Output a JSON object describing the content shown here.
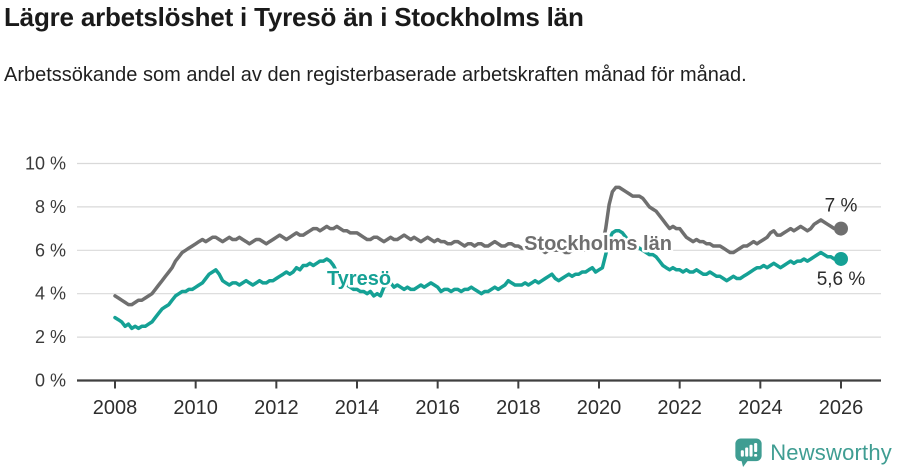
{
  "header": {
    "title": "Lägre arbetslöshet i Tyresö än i Stockholms län",
    "subtitle": "Arbetssökande som andel av den registerbaserade arbetskraften månad för månad."
  },
  "chart_data": {
    "type": "line",
    "title": "Lägre arbetslöshet i Tyresö än i Stockholms län",
    "subtitle": "Arbetssökande som andel av den registerbaserade arbetskraften månad för månad.",
    "unit": "%",
    "x_start_year": 2008,
    "x_end_year": 2026,
    "points_per_year": 12,
    "x_tick_years": [
      2008,
      2010,
      2012,
      2014,
      2016,
      2018,
      2020,
      2022,
      2024,
      2026
    ],
    "y_ticks": [
      0,
      2,
      4,
      6,
      8,
      10
    ],
    "y_tick_labels": [
      "0 %",
      "2 %",
      "4 %",
      "6 %",
      "8 %",
      "10 %"
    ],
    "ylim": [
      0,
      10
    ],
    "grid": true,
    "legend_position": "inline-labels",
    "series": [
      {
        "name": "Stockholms län",
        "color": "#6f6f6f",
        "end_label": "7 %",
        "end_value": 7.0,
        "values": [
          3.9,
          3.8,
          3.7,
          3.6,
          3.5,
          3.5,
          3.6,
          3.7,
          3.7,
          3.8,
          3.9,
          4.0,
          4.2,
          4.4,
          4.6,
          4.8,
          5.0,
          5.2,
          5.5,
          5.7,
          5.9,
          6.0,
          6.1,
          6.2,
          6.3,
          6.4,
          6.5,
          6.4,
          6.5,
          6.6,
          6.6,
          6.5,
          6.4,
          6.5,
          6.6,
          6.5,
          6.5,
          6.6,
          6.5,
          6.4,
          6.3,
          6.4,
          6.5,
          6.5,
          6.4,
          6.3,
          6.4,
          6.5,
          6.6,
          6.7,
          6.6,
          6.5,
          6.6,
          6.7,
          6.8,
          6.7,
          6.7,
          6.8,
          6.9,
          7.0,
          7.0,
          6.9,
          7.0,
          7.1,
          7.0,
          7.0,
          7.1,
          7.0,
          6.9,
          6.9,
          6.8,
          6.8,
          6.8,
          6.7,
          6.6,
          6.5,
          6.5,
          6.6,
          6.6,
          6.5,
          6.4,
          6.5,
          6.6,
          6.5,
          6.5,
          6.6,
          6.7,
          6.6,
          6.5,
          6.6,
          6.5,
          6.4,
          6.5,
          6.6,
          6.5,
          6.4,
          6.5,
          6.4,
          6.4,
          6.3,
          6.3,
          6.4,
          6.4,
          6.3,
          6.2,
          6.3,
          6.3,
          6.2,
          6.3,
          6.3,
          6.2,
          6.2,
          6.3,
          6.4,
          6.3,
          6.2,
          6.2,
          6.3,
          6.3,
          6.2,
          6.2,
          6.1,
          6.1,
          6.0,
          6.0,
          6.1,
          6.1,
          6.0,
          5.9,
          6.0,
          6.0,
          6.0,
          6.0,
          6.0,
          5.9,
          5.9,
          6.0,
          6.1,
          6.1,
          6.0,
          6.0,
          6.0,
          6.1,
          6.1,
          6.2,
          6.3,
          7.0,
          8.1,
          8.7,
          8.9,
          8.9,
          8.8,
          8.7,
          8.6,
          8.5,
          8.5,
          8.5,
          8.4,
          8.2,
          8.0,
          7.9,
          7.8,
          7.6,
          7.4,
          7.2,
          7.0,
          7.1,
          7.0,
          7.0,
          6.8,
          6.6,
          6.5,
          6.4,
          6.5,
          6.4,
          6.4,
          6.3,
          6.3,
          6.2,
          6.2,
          6.2,
          6.1,
          6.0,
          5.9,
          5.9,
          6.0,
          6.1,
          6.2,
          6.2,
          6.3,
          6.4,
          6.3,
          6.4,
          6.5,
          6.6,
          6.8,
          6.9,
          6.7,
          6.7,
          6.8,
          6.9,
          7.0,
          6.9,
          7.0,
          7.1,
          7.0,
          6.9,
          7.0,
          7.2,
          7.3,
          7.4,
          7.3,
          7.2,
          7.1,
          7.0,
          7.0,
          7.0
        ]
      },
      {
        "name": "Tyresö",
        "color": "#15a195",
        "end_label": "5,6 %",
        "end_value": 5.6,
        "values": [
          2.9,
          2.8,
          2.7,
          2.5,
          2.6,
          2.4,
          2.5,
          2.4,
          2.5,
          2.5,
          2.6,
          2.7,
          2.9,
          3.1,
          3.3,
          3.4,
          3.5,
          3.7,
          3.9,
          4.0,
          4.1,
          4.1,
          4.2,
          4.2,
          4.3,
          4.4,
          4.5,
          4.7,
          4.9,
          5.0,
          5.1,
          4.9,
          4.6,
          4.5,
          4.4,
          4.5,
          4.5,
          4.4,
          4.5,
          4.6,
          4.5,
          4.4,
          4.5,
          4.6,
          4.5,
          4.5,
          4.6,
          4.6,
          4.7,
          4.8,
          4.9,
          5.0,
          4.9,
          5.0,
          5.2,
          5.1,
          5.3,
          5.3,
          5.4,
          5.3,
          5.4,
          5.5,
          5.5,
          5.6,
          5.5,
          5.3,
          5.0,
          4.8,
          4.6,
          4.4,
          4.3,
          4.2,
          4.2,
          4.1,
          4.1,
          4.0,
          4.1,
          3.9,
          4.0,
          3.9,
          4.3,
          4.4,
          4.5,
          4.3,
          4.4,
          4.3,
          4.2,
          4.3,
          4.2,
          4.2,
          4.3,
          4.4,
          4.3,
          4.4,
          4.5,
          4.4,
          4.3,
          4.1,
          4.2,
          4.2,
          4.1,
          4.2,
          4.2,
          4.1,
          4.2,
          4.2,
          4.3,
          4.2,
          4.1,
          4.0,
          4.1,
          4.1,
          4.2,
          4.3,
          4.2,
          4.3,
          4.4,
          4.6,
          4.5,
          4.4,
          4.4,
          4.4,
          4.5,
          4.4,
          4.5,
          4.6,
          4.5,
          4.6,
          4.7,
          4.8,
          4.9,
          4.7,
          4.6,
          4.7,
          4.8,
          4.9,
          4.8,
          4.9,
          4.9,
          5.0,
          5.0,
          5.1,
          5.2,
          5.0,
          5.1,
          5.2,
          5.8,
          6.5,
          6.8,
          6.9,
          6.9,
          6.8,
          6.6,
          6.4,
          6.3,
          6.2,
          6.1,
          6.0,
          5.9,
          5.8,
          5.8,
          5.7,
          5.5,
          5.3,
          5.2,
          5.1,
          5.2,
          5.1,
          5.1,
          5.0,
          5.1,
          5.0,
          5.0,
          5.1,
          5.0,
          4.9,
          4.9,
          5.0,
          4.9,
          4.8,
          4.8,
          4.7,
          4.6,
          4.7,
          4.8,
          4.7,
          4.7,
          4.8,
          4.9,
          5.0,
          5.1,
          5.2,
          5.2,
          5.3,
          5.2,
          5.3,
          5.4,
          5.3,
          5.2,
          5.3,
          5.4,
          5.5,
          5.4,
          5.5,
          5.5,
          5.6,
          5.5,
          5.6,
          5.7,
          5.8,
          5.9,
          5.8,
          5.7,
          5.7,
          5.6,
          5.6,
          5.6
        ]
      }
    ],
    "colors": {
      "grid": "#d9d9d9",
      "axis": "#3f3f3f",
      "tick_label": "#2e2e2e",
      "end_label": "#2b2b2b"
    }
  },
  "footer": {
    "brand": "Newsworthy",
    "logo_icon": "bar-chart-speech-bubble-icon",
    "brand_color": "#3f9d92"
  }
}
